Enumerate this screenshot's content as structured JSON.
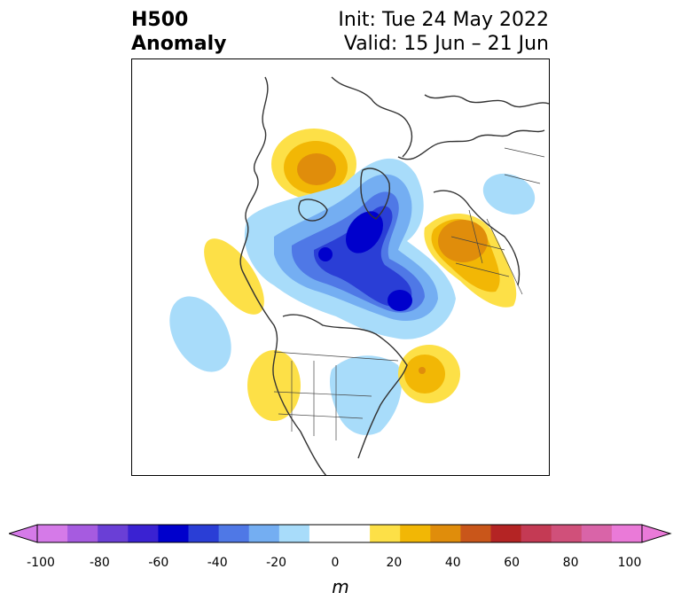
{
  "title": {
    "line1": "H500",
    "line2": "Anomaly"
  },
  "info": {
    "init": "Init: Tue 24 May 2022",
    "valid": "Valid: 15 Jun – 21 Jun"
  },
  "colorbar": {
    "unit": "m",
    "ticks": [
      "-100",
      "-80",
      "-60",
      "-40",
      "-20",
      "0",
      "20",
      "40",
      "60",
      "80",
      "100"
    ],
    "extend": "both",
    "colors": [
      "#d57ae8",
      "#a65be0",
      "#6a3fd6",
      "#3a22d2",
      "#0000cc",
      "#2a3ed6",
      "#4f78e6",
      "#74aef2",
      "#a8dcfa",
      "#ffffff",
      "#ffffff",
      "#fde047",
      "#f2b705",
      "#e08d0b",
      "#c9561a",
      "#b42424",
      "#c43a54",
      "#d0507a",
      "#d964a8",
      "#ea7ad8"
    ]
  }
}
